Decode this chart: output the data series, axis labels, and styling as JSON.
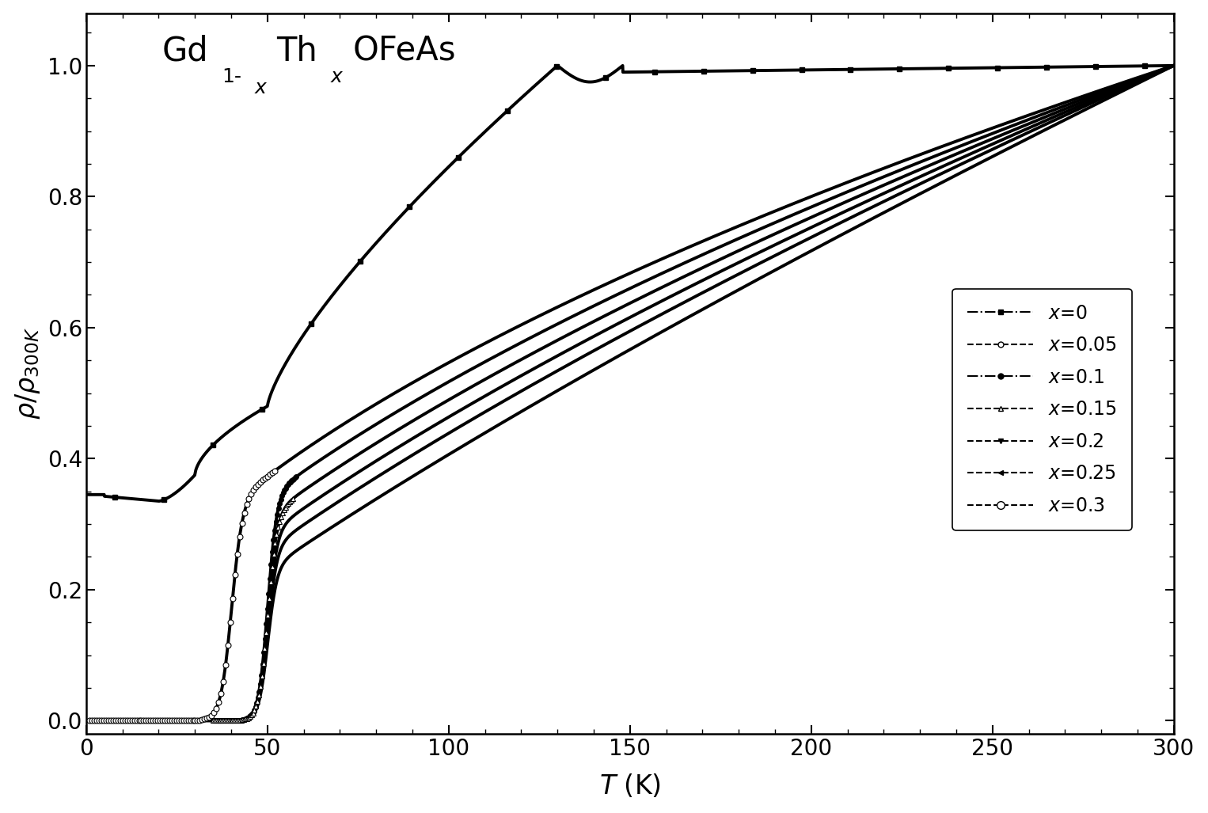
{
  "xlabel": "$T$ (K)",
  "ylabel": "$\\rho/\\rho_{300K}$",
  "xlim": [
    0,
    300
  ],
  "ylim": [
    -0.02,
    1.08
  ],
  "xticks": [
    0,
    50,
    100,
    150,
    200,
    250,
    300
  ],
  "yticks": [
    0.0,
    0.2,
    0.4,
    0.6,
    0.8,
    1.0
  ],
  "figsize": [
    15.26,
    10.27
  ],
  "dpi": 100,
  "linewidth": 2.8,
  "markersize_small": 4,
  "markersize_med": 5,
  "legend_labels": [
    "$x$=0",
    "$x$=0.05",
    "$x$=0.1",
    "$x$=0.15",
    "$x$=0.2",
    "$x$=0.25",
    "$x$=0.3"
  ],
  "formula_text": "Gd",
  "formula_subscript1": "1-",
  "formula_italic1": "x",
  "formula_text2": "Th",
  "formula_italic2": "x",
  "formula_text3": "OFeAs"
}
